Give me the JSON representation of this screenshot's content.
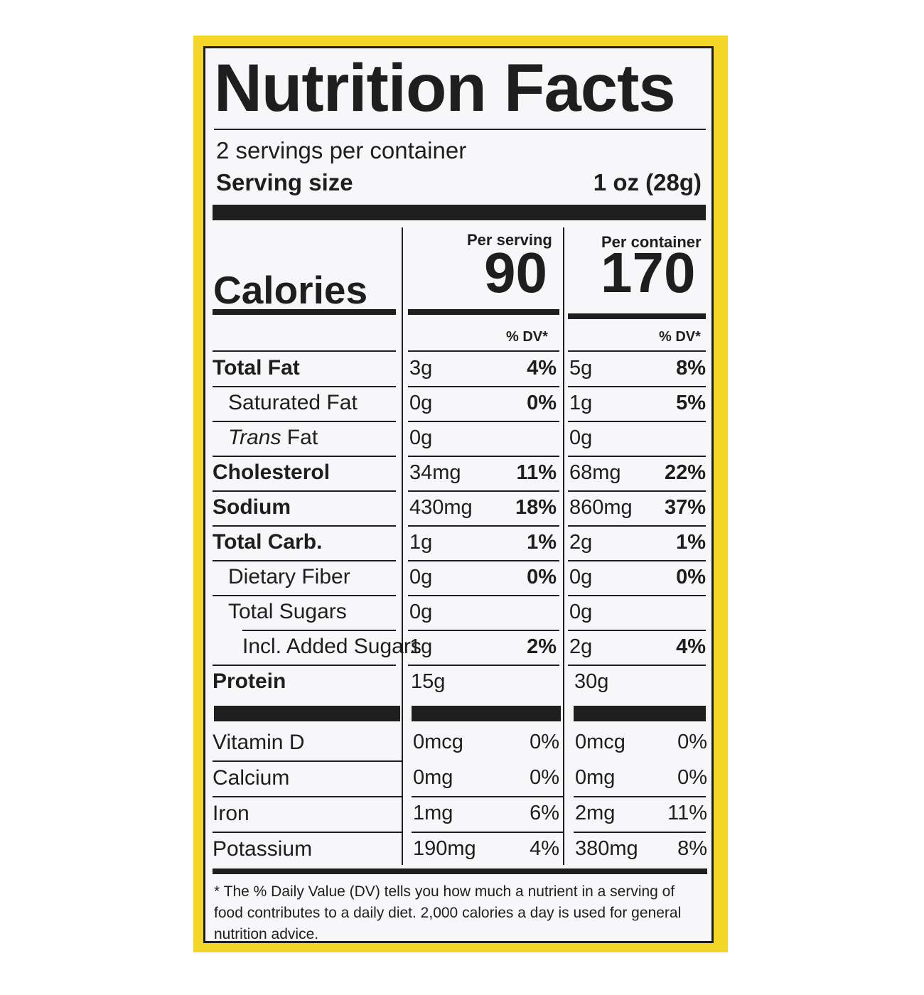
{
  "title": "Nutrition Facts",
  "servings_per_container": "2 servings per container",
  "serving_size_label": "Serving size",
  "serving_size_value": "1 oz (28g)",
  "per_serving_label": "Per serving",
  "per_container_label": "Per container",
  "calories_label": "Calories",
  "calories_serving": "90",
  "calories_container": "170",
  "dv_label": "% DV*",
  "nutrients": [
    {
      "name": "Total Fat",
      "serving": "3g",
      "serving_dv": "4%",
      "container": "5g",
      "container_dv": "8%"
    },
    {
      "name": "Saturated Fat",
      "serving": "0g",
      "serving_dv": "0%",
      "container": "1g",
      "container_dv": "5%"
    },
    {
      "name_italic": "Trans",
      "name": " Fat",
      "serving": "0g",
      "serving_dv": "",
      "container": "0g",
      "container_dv": ""
    },
    {
      "name": "Cholesterol",
      "serving": "34mg",
      "serving_dv": "11%",
      "container": "68mg",
      "container_dv": "22%"
    },
    {
      "name": "Sodium",
      "serving": "430mg",
      "serving_dv": "18%",
      "container": "860mg",
      "container_dv": "37%"
    },
    {
      "name": "Total Carb.",
      "serving": "1g",
      "serving_dv": "1%",
      "container": "2g",
      "container_dv": "1%"
    },
    {
      "name": "Dietary Fiber",
      "serving": "0g",
      "serving_dv": "0%",
      "container": "0g",
      "container_dv": "0%"
    },
    {
      "name": "Total Sugars",
      "serving": "0g",
      "serving_dv": "",
      "container": "0g",
      "container_dv": ""
    },
    {
      "name": "Incl. Added Sugars",
      "serving": "1g",
      "serving_dv": "2%",
      "container": "2g",
      "container_dv": "4%"
    },
    {
      "name": "Protein",
      "serving": "15g",
      "serving_dv": "",
      "container": "30g",
      "container_dv": ""
    }
  ],
  "vitamins": [
    {
      "name": "Vitamin D",
      "serving": "0mcg",
      "serving_dv": "0%",
      "container": "0mcg",
      "container_dv": "0%"
    },
    {
      "name": "Calcium",
      "serving": "0mg",
      "serving_dv": "0%",
      "container": "0mg",
      "container_dv": "0%"
    },
    {
      "name": "Iron",
      "serving": "1mg",
      "serving_dv": "6%",
      "container": "2mg",
      "container_dv": "11%"
    },
    {
      "name": "Potassium",
      "serving": "190mg",
      "serving_dv": "4%",
      "container": "380mg",
      "container_dv": "8%"
    }
  ],
  "footnote": "* The % Daily Value (DV) tells you how much a nutrient in a serving of food contributes to a daily diet. 2,000 calories a day is used for general nutrition advice."
}
